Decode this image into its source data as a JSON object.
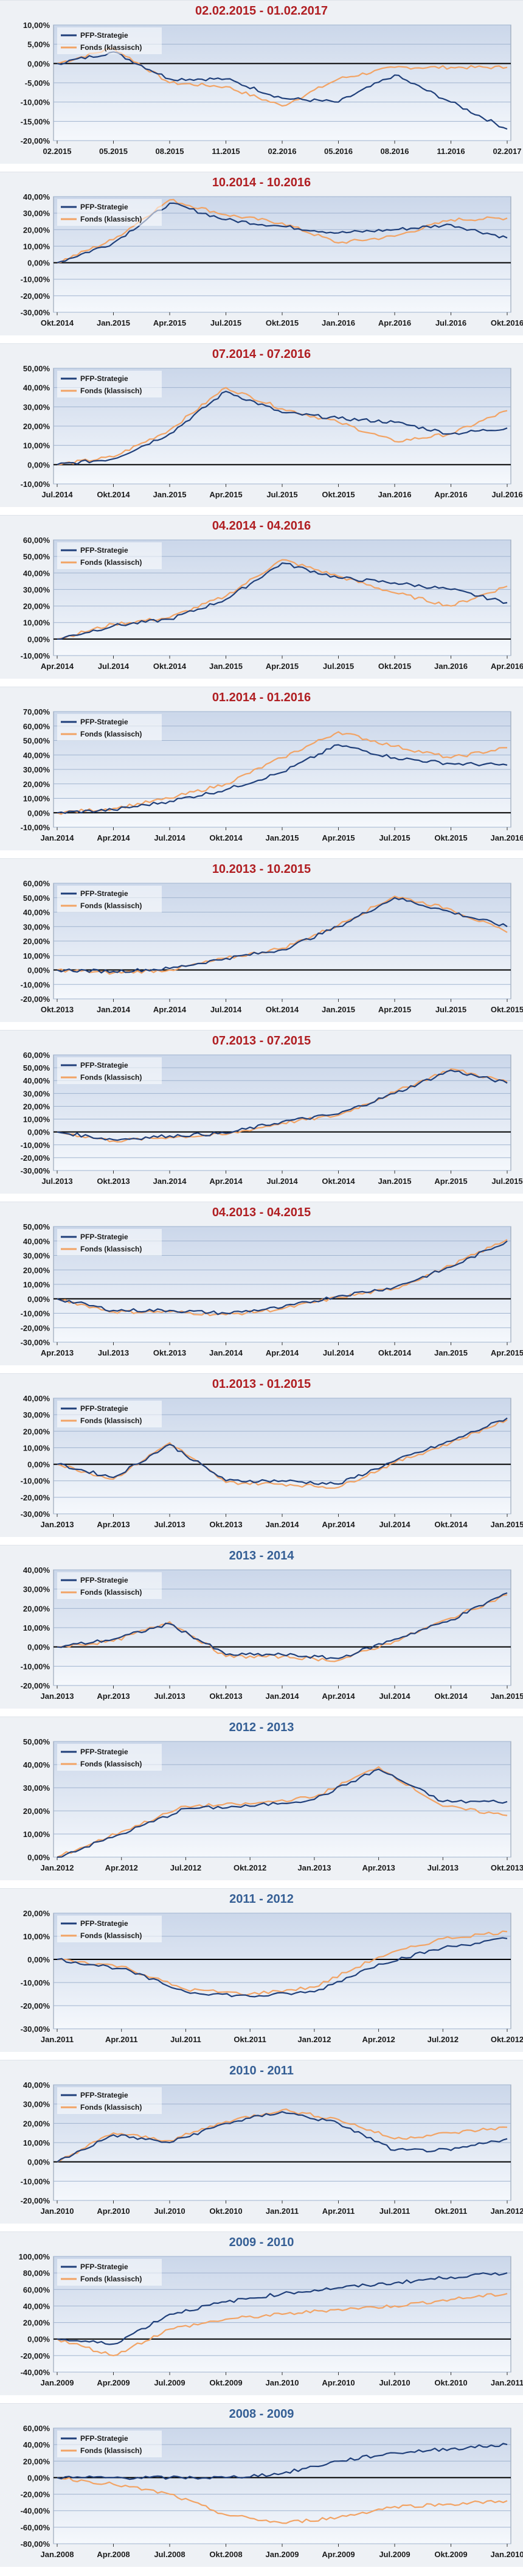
{
  "colors": {
    "strategy": "#1f3f7a",
    "fund": "#f2a364",
    "title_red": "#b01e22",
    "title_blue": "#355f95",
    "plot_top": "#cbd7ea",
    "plot_bottom": "#f5f8fc",
    "grid": "#9fb3cf"
  },
  "chart_data": [
    {
      "type": "line",
      "title": "02.02.2015 - 01.02.2017",
      "title_color": "red",
      "x": [
        "02.2015",
        "05.2015",
        "08.2015",
        "11.2015",
        "02.2016",
        "05.2016",
        "08.2016",
        "11.2016",
        "02.2017"
      ],
      "ylim": [
        -20,
        10
      ],
      "yticks": [
        "10,00%",
        "5,00%",
        "0,00%",
        "-5,00%",
        "-10,00%",
        "-15,00%",
        "-20,00%"
      ],
      "legend": "top-left",
      "grid": true,
      "series": [
        {
          "name": "PFP-Strategie",
          "values": [
            0,
            3,
            -4,
            -4,
            -9,
            -10,
            -3,
            -10,
            -17
          ]
        },
        {
          "name": "Fonds (klassisch)",
          "values": [
            0,
            4,
            -5,
            -6,
            -11,
            -4,
            -1,
            -1,
            -1
          ]
        }
      ]
    },
    {
      "type": "line",
      "title": "10.2014 - 10.2016",
      "title_color": "red",
      "x": [
        "Okt.2014",
        "Jan.2015",
        "Apr.2015",
        "Jul.2015",
        "Okt.2015",
        "Jan.2016",
        "Apr.2016",
        "Jul.2016",
        "Okt.2016"
      ],
      "ylim": [
        -30,
        40
      ],
      "yticks": [
        "40,00%",
        "30,00%",
        "20,00%",
        "10,00%",
        "0,00%",
        "-10,00%",
        "-20,00%",
        "-30,00%"
      ],
      "legend": "top-left",
      "grid": true,
      "series": [
        {
          "name": "PFP-Strategie",
          "values": [
            0,
            12,
            36,
            26,
            22,
            18,
            20,
            23,
            15
          ]
        },
        {
          "name": "Fonds (klassisch)",
          "values": [
            0,
            14,
            38,
            29,
            24,
            12,
            16,
            26,
            27
          ]
        }
      ]
    },
    {
      "type": "line",
      "title": "07.2014 - 07.2016",
      "title_color": "red",
      "x": [
        "Jul.2014",
        "Okt.2014",
        "Jan.2015",
        "Apr.2015",
        "Jul.2015",
        "Okt.2015",
        "Jan.2016",
        "Apr.2016",
        "Jul.2016"
      ],
      "ylim": [
        -10,
        50
      ],
      "yticks": [
        "50,00%",
        "40,00%",
        "30,00%",
        "20,00%",
        "10,00%",
        "0,00%",
        "-10,00%"
      ],
      "legend": "top-left",
      "grid": true,
      "series": [
        {
          "name": "PFP-Strategie",
          "values": [
            0,
            3,
            16,
            38,
            27,
            24,
            22,
            16,
            19
          ]
        },
        {
          "name": "Fonds (klassisch)",
          "values": [
            0,
            4,
            18,
            40,
            29,
            22,
            12,
            16,
            28
          ]
        }
      ]
    },
    {
      "type": "line",
      "title": "04.2014 - 04.2016",
      "title_color": "red",
      "x": [
        "Apr.2014",
        "Jul.2014",
        "Okt.2014",
        "Jan.2015",
        "Apr.2015",
        "Jul.2015",
        "Okt.2015",
        "Jan.2016",
        "Apr.2016"
      ],
      "ylim": [
        -10,
        60
      ],
      "yticks": [
        "60,00%",
        "50,00%",
        "40,00%",
        "30,00%",
        "20,00%",
        "10,00%",
        "0,00%",
        "-10,00%"
      ],
      "legend": "top-left",
      "grid": true,
      "series": [
        {
          "name": "PFP-Strategie",
          "values": [
            0,
            8,
            12,
            24,
            46,
            37,
            34,
            30,
            22
          ]
        },
        {
          "name": "Fonds (klassisch)",
          "values": [
            0,
            9,
            13,
            26,
            48,
            38,
            28,
            20,
            32
          ]
        }
      ]
    },
    {
      "type": "line",
      "title": "01.2014 - 01.2016",
      "title_color": "red",
      "x": [
        "Jan.2014",
        "Apr.2014",
        "Jul.2014",
        "Okt.2014",
        "Jan.2015",
        "Apr.2015",
        "Jul.2015",
        "Okt.2015",
        "Jan.2016"
      ],
      "ylim": [
        -10,
        70
      ],
      "yticks": [
        "70,00%",
        "60,00%",
        "50,00%",
        "40,00%",
        "30,00%",
        "20,00%",
        "10,00%",
        "0,00%",
        "-10,00%"
      ],
      "legend": "top-left",
      "grid": true,
      "series": [
        {
          "name": "PFP-Strategie",
          "values": [
            0,
            2,
            8,
            16,
            28,
            47,
            38,
            34,
            33
          ]
        },
        {
          "name": "Fonds (klassisch)",
          "values": [
            0,
            3,
            10,
            20,
            38,
            56,
            46,
            38,
            45
          ]
        }
      ]
    },
    {
      "type": "line",
      "title": "10.2013 - 10.2015",
      "title_color": "red",
      "x": [
        "Okt.2013",
        "Jan.2014",
        "Apr.2014",
        "Jul.2014",
        "Okt.2014",
        "Jan.2015",
        "Apr.2015",
        "Jul.2015",
        "Okt.2015"
      ],
      "ylim": [
        -20,
        60
      ],
      "yticks": [
        "60,00%",
        "50,00%",
        "40,00%",
        "30,00%",
        "20,00%",
        "10,00%",
        "0,00%",
        "-10,00%",
        "-20,00%"
      ],
      "legend": "top-left",
      "grid": true,
      "series": [
        {
          "name": "PFP-Strategie",
          "values": [
            0,
            -1,
            1,
            8,
            14,
            30,
            50,
            40,
            30
          ]
        },
        {
          "name": "Fonds (klassisch)",
          "values": [
            0,
            -2,
            0,
            8,
            15,
            31,
            51,
            42,
            26
          ]
        }
      ]
    },
    {
      "type": "line",
      "title": "07.2013 - 07.2015",
      "title_color": "red",
      "x": [
        "Jul.2013",
        "Okt.2013",
        "Jan.2014",
        "Apr.2014",
        "Jul.2014",
        "Okt.2014",
        "Jan.2015",
        "Apr.2015",
        "Jul.2015"
      ],
      "ylim": [
        -30,
        60
      ],
      "yticks": [
        "60,00%",
        "50,00%",
        "40,00%",
        "30,00%",
        "20,00%",
        "10,00%",
        "0,00%",
        "-10,00%",
        "-20,00%",
        "-30,00%"
      ],
      "legend": "top-left",
      "grid": true,
      "series": [
        {
          "name": "PFP-Strategie",
          "values": [
            0,
            -6,
            -3,
            -1,
            8,
            14,
            30,
            48,
            38
          ]
        },
        {
          "name": "Fonds (klassisch)",
          "values": [
            0,
            -7,
            -4,
            -2,
            7,
            13,
            31,
            49,
            39
          ]
        }
      ]
    },
    {
      "type": "line",
      "title": "04.2013 - 04.2015",
      "title_color": "red",
      "x": [
        "Apr.2013",
        "Jul.2013",
        "Okt.2013",
        "Jan.2014",
        "Apr.2014",
        "Jul.2014",
        "Okt.2014",
        "Jan.2015",
        "Apr.2015"
      ],
      "ylim": [
        -30,
        50
      ],
      "yticks": [
        "50,00%",
        "40,00%",
        "30,00%",
        "20,00%",
        "10,00%",
        "0,00%",
        "-10,00%",
        "-20,00%",
        "-30,00%"
      ],
      "legend": "top-left",
      "grid": true,
      "series": [
        {
          "name": "PFP-Strategie",
          "values": [
            0,
            -8,
            -8,
            -10,
            -6,
            2,
            8,
            22,
            40
          ]
        },
        {
          "name": "Fonds (klassisch)",
          "values": [
            0,
            -9,
            -9,
            -11,
            -7,
            1,
            7,
            23,
            41
          ]
        }
      ]
    },
    {
      "type": "line",
      "title": "01.2013 - 01.2015",
      "title_color": "red",
      "x": [
        "Jan.2013",
        "Apr.2013",
        "Jul.2013",
        "Okt.2013",
        "Jan.2014",
        "Apr.2014",
        "Jul.2014",
        "Okt.2014",
        "Jan.2015"
      ],
      "ylim": [
        -30,
        40
      ],
      "yticks": [
        "40,00%",
        "30,00%",
        "20,00%",
        "10,00%",
        "0,00%",
        "-10,00%",
        "-20,00%",
        "-30,00%"
      ],
      "legend": "top-left",
      "grid": true,
      "series": [
        {
          "name": "PFP-Strategie",
          "values": [
            0,
            -8,
            12,
            -10,
            -10,
            -12,
            2,
            14,
            28
          ]
        },
        {
          "name": "Fonds (klassisch)",
          "values": [
            0,
            -9,
            13,
            -11,
            -12,
            -14,
            1,
            13,
            27
          ]
        }
      ]
    },
    {
      "type": "line",
      "title": "2013 - 2014",
      "title_color": "blue",
      "x": [
        "Jan.2013",
        "Apr.2013",
        "Jul.2013",
        "Okt.2013",
        "Jan.2014",
        "Apr.2014",
        "Jul.2014",
        "Okt.2014",
        "Jan.2015"
      ],
      "ylim": [
        -20,
        40
      ],
      "yticks": [
        "40,00%",
        "30,00%",
        "20,00%",
        "10,00%",
        "0,00%",
        "-10,00%",
        "-20,00%"
      ],
      "legend": "top-left",
      "grid": true,
      "series": [
        {
          "name": "PFP-Strategie",
          "values": [
            0,
            4,
            12,
            -4,
            -4,
            -6,
            4,
            14,
            28
          ]
        },
        {
          "name": "Fonds (klassisch)",
          "values": [
            0,
            3,
            13,
            -5,
            -5,
            -7,
            3,
            15,
            27
          ]
        }
      ]
    },
    {
      "type": "line",
      "title": "2012 - 2013",
      "title_color": "blue",
      "x": [
        "Jan.2012",
        "Apr.2012",
        "Jul.2012",
        "Okt.2012",
        "Jan.2013",
        "Apr.2013",
        "Jul.2013",
        "Okt.2013"
      ],
      "ylim": [
        0,
        50
      ],
      "yticks": [
        "50,00%",
        "40,00%",
        "30,00%",
        "20,00%",
        "10,00%",
        "0,00%"
      ],
      "legend": "top-left",
      "grid": true,
      "series": [
        {
          "name": "PFP-Strategie",
          "values": [
            0,
            10,
            21,
            22,
            25,
            38,
            24,
            24
          ]
        },
        {
          "name": "Fonds (klassisch)",
          "values": [
            0,
            11,
            22,
            23,
            26,
            39,
            22,
            18
          ]
        }
      ]
    },
    {
      "type": "line",
      "title": "2011 - 2012",
      "title_color": "blue",
      "x": [
        "Jan.2011",
        "Apr.2011",
        "Jul.2011",
        "Okt.2011",
        "Jan.2012",
        "Apr.2012",
        "Jul.2012",
        "Okt.2012"
      ],
      "ylim": [
        -30,
        20
      ],
      "yticks": [
        "20,00%",
        "10,00%",
        "0,00%",
        "-10,00%",
        "-20,00%",
        "-30,00%"
      ],
      "legend": "top-left",
      "grid": true,
      "series": [
        {
          "name": "PFP-Strategie",
          "values": [
            0,
            -4,
            -14,
            -16,
            -14,
            -2,
            5,
            9
          ]
        },
        {
          "name": "Fonds (klassisch)",
          "values": [
            0,
            -3,
            -13,
            -15,
            -12,
            1,
            9,
            12
          ]
        }
      ]
    },
    {
      "type": "line",
      "title": "2010 - 2011",
      "title_color": "blue",
      "x": [
        "Jan.2010",
        "Apr.2010",
        "Jul.2010",
        "Okt.2010",
        "Jan.2011",
        "Apr.2011",
        "Jul.2011",
        "Okt.2011",
        "Jan.2012"
      ],
      "ylim": [
        -20,
        40
      ],
      "yticks": [
        "40,00%",
        "30,00%",
        "20,00%",
        "10,00%",
        "0,00%",
        "-10,00%",
        "-20,00%"
      ],
      "legend": "top-left",
      "grid": true,
      "series": [
        {
          "name": "PFP-Strategie",
          "values": [
            0,
            14,
            10,
            20,
            26,
            20,
            6,
            6,
            12
          ]
        },
        {
          "name": "Fonds (klassisch)",
          "values": [
            0,
            15,
            11,
            21,
            27,
            22,
            12,
            15,
            18
          ]
        }
      ]
    },
    {
      "type": "line",
      "title": "2009 - 2010",
      "title_color": "blue",
      "x": [
        "Jan.2009",
        "Apr.2009",
        "Jul.2009",
        "Okt.2009",
        "Jan.2010",
        "Apr.2010",
        "Jul.2010",
        "Okt.2010",
        "Jan.2011"
      ],
      "ylim": [
        -40,
        100
      ],
      "yticks": [
        "100,00%",
        "80,00%",
        "60,00%",
        "40,00%",
        "20,00%",
        "0,00%",
        "-20,00%",
        "-40,00%"
      ],
      "legend": "top-left",
      "grid": true,
      "series": [
        {
          "name": "PFP-Strategie",
          "values": [
            0,
            -6,
            30,
            45,
            55,
            62,
            68,
            75,
            80
          ]
        },
        {
          "name": "Fonds (klassisch)",
          "values": [
            0,
            -20,
            12,
            24,
            30,
            36,
            40,
            48,
            55
          ]
        }
      ]
    },
    {
      "type": "line",
      "title": "2008 - 2009",
      "title_color": "blue",
      "x": [
        "Jan.2008",
        "Apr.2008",
        "Jul.2008",
        "Okt.2008",
        "Jan.2009",
        "Apr.2009",
        "Jul.2009",
        "Okt.2009",
        "Jan.2010"
      ],
      "ylim": [
        -80,
        60
      ],
      "yticks": [
        "60,00%",
        "40,00%",
        "20,00%",
        "0,00%",
        "-20,00%",
        "-40,00%",
        "-60,00%",
        "-80,00%"
      ],
      "legend": "top-left",
      "grid": true,
      "series": [
        {
          "name": "PFP-Strategie",
          "values": [
            0,
            0,
            0,
            0,
            5,
            20,
            30,
            35,
            40
          ]
        },
        {
          "name": "Fonds (klassisch)",
          "values": [
            0,
            -8,
            -20,
            -45,
            -55,
            -48,
            -35,
            -32,
            -28
          ]
        }
      ]
    }
  ]
}
